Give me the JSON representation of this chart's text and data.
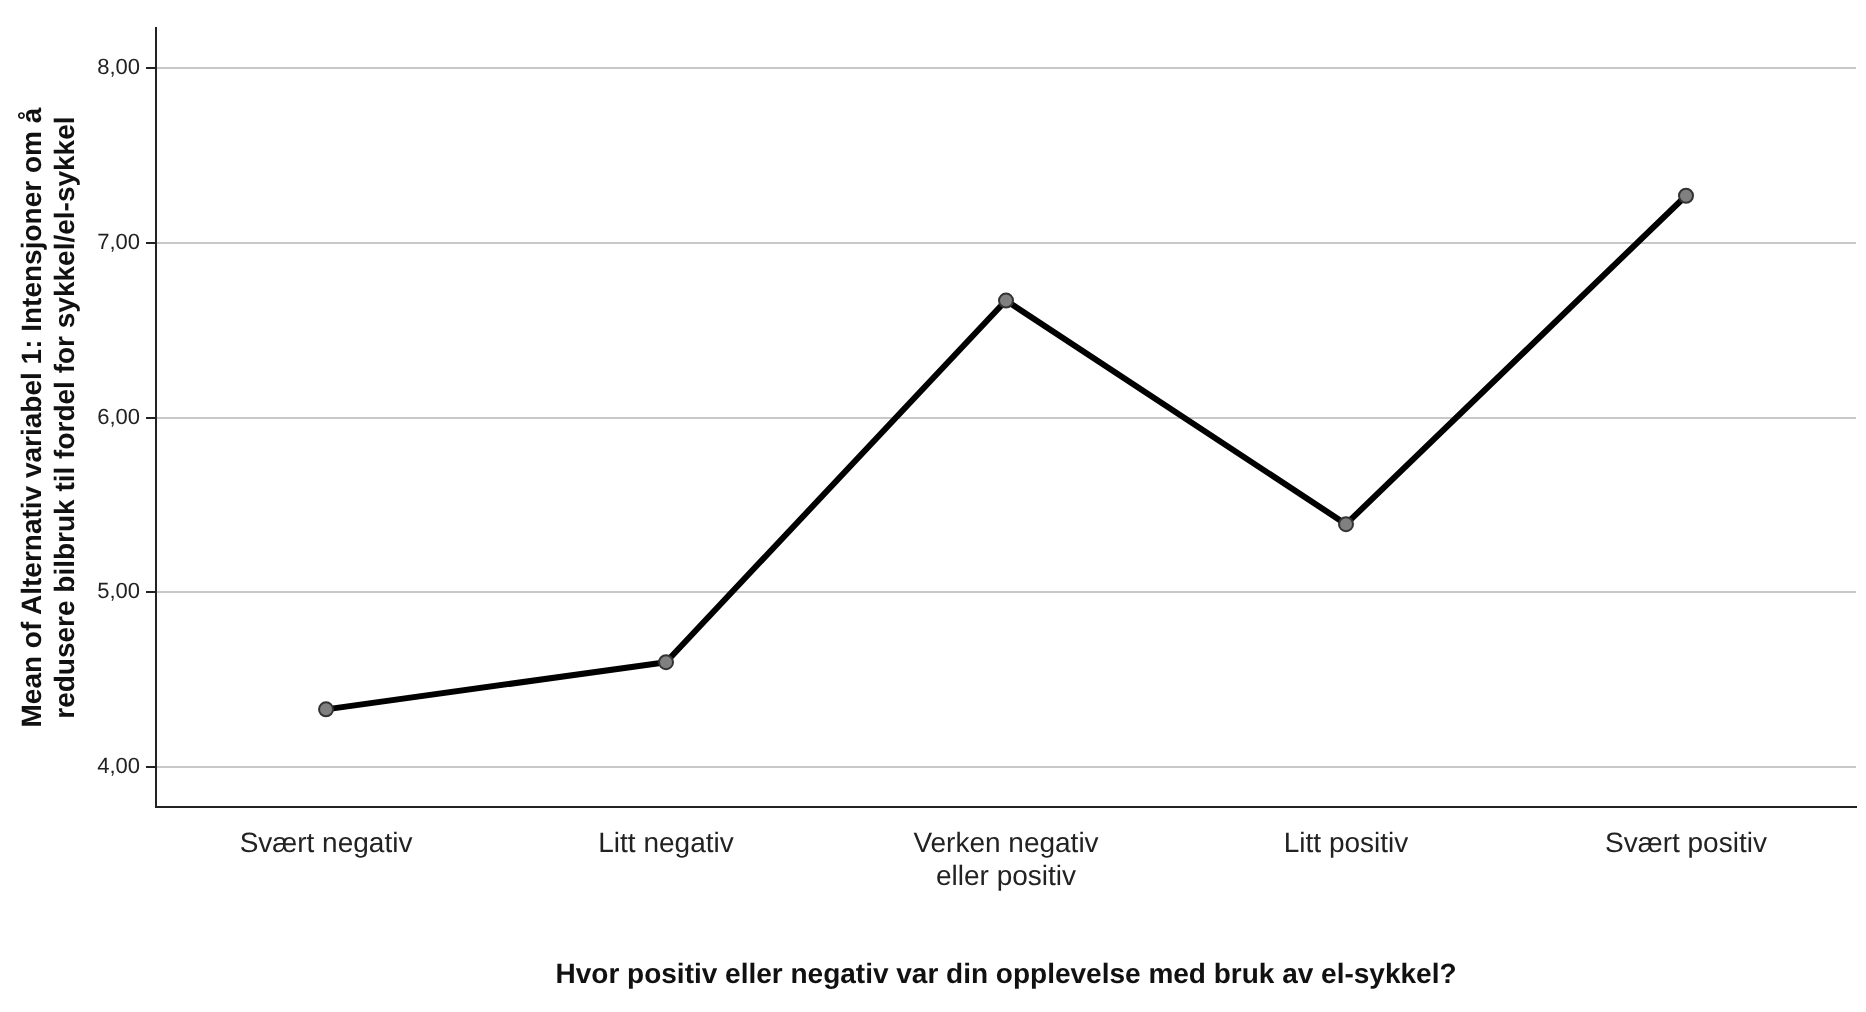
{
  "chart_data": {
    "type": "line",
    "xlabel": "Hvor positiv eller negativ var din opplevelse med bruk av el-sykkel?",
    "ylabel": "Mean of Alternativ variabel 1: Intensjoner om å redusere bilbruk til fordel for sykkel/el-sykkel",
    "categories": [
      "Svært negativ",
      "Litt negativ",
      "Verken negativ eller positiv",
      "Litt positiv",
      "Svært positiv"
    ],
    "series": [
      {
        "color": "#000000",
        "values": [
          4.33,
          4.6,
          6.67,
          5.39,
          7.27
        ]
      }
    ],
    "ylim": [
      3.77,
      8.23
    ],
    "yticks": [
      {
        "value": 4,
        "label": "4,00"
      },
      {
        "value": 5,
        "label": "5,00"
      },
      {
        "value": 6,
        "label": "6,00"
      },
      {
        "value": 7,
        "label": "7,00"
      },
      {
        "value": 8,
        "label": "8,00"
      }
    ],
    "grid": "y",
    "legend": false,
    "marker": "circle",
    "line_style": "solid"
  }
}
